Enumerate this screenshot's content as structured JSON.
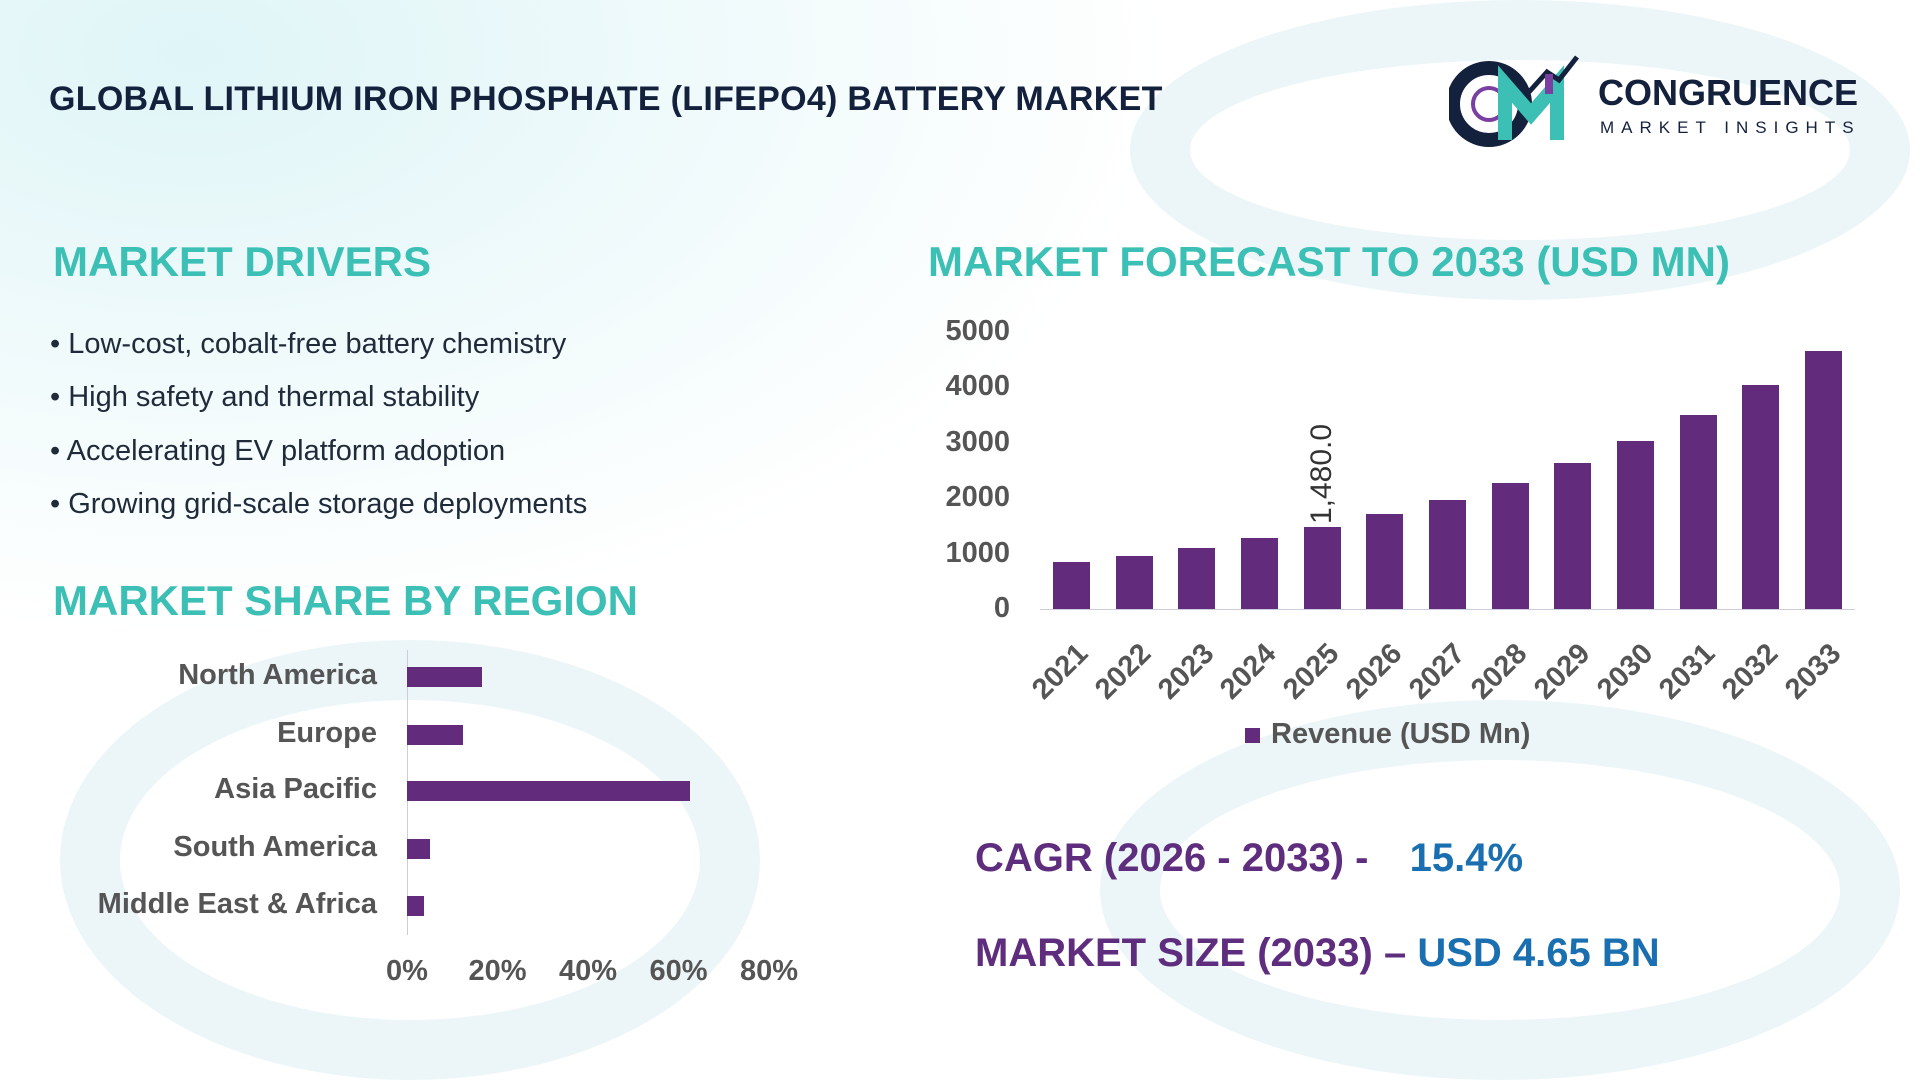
{
  "title": "GLOBAL LITHIUM IRON PHOSPHATE (LIFEPO4) BATTERY MARKET",
  "logo": {
    "name": "CONGRUENCE",
    "tagline": "MARKET INSIGHTS",
    "mark": "CM"
  },
  "drivers": {
    "heading": "MARKET DRIVERS",
    "items": [
      "• Low-cost, cobalt-free battery chemistry",
      "• High safety and thermal stability",
      "• Accelerating EV platform adoption",
      "• Growing grid-scale storage deployments"
    ]
  },
  "colors": {
    "accent": "#3cbfb4",
    "bar": "#632b7b",
    "kpi_label": "#5f2d7e",
    "kpi_value": "#1a6fb0"
  },
  "chart_data": [
    {
      "type": "bar",
      "orientation": "horizontal",
      "title": "MARKET SHARE BY REGION",
      "categories": [
        "North America",
        "Europe",
        "Asia Pacific",
        "South America",
        "Middle East & Africa"
      ],
      "values": [
        16.5,
        12.3,
        62.5,
        5.0,
        3.8
      ],
      "xlim": [
        0,
        80
      ],
      "xticks": [
        "0%",
        "20%",
        "40%",
        "60%",
        "80%"
      ],
      "grid": false
    },
    {
      "type": "bar",
      "title": "MARKET FORECAST TO 2033 (USD MN)",
      "categories": [
        "2021",
        "2022",
        "2023",
        "2024",
        "2025",
        "2026",
        "2027",
        "2028",
        "2029",
        "2030",
        "2031",
        "2032",
        "2033"
      ],
      "series": [
        {
          "name": "Revenue (USD Mn)",
          "values": [
            840,
            960,
            1105,
            1280,
            1480,
            1710,
            1970,
            2280,
            2630,
            3030,
            3500,
            4040,
            4650
          ]
        }
      ],
      "ylim": [
        0,
        5000
      ],
      "yticks": [
        "0",
        "1000",
        "2000",
        "3000",
        "4000",
        "5000"
      ],
      "annotations": [
        {
          "category": "2025",
          "label": "1,480.0"
        }
      ],
      "legend": "bottom",
      "grid": false
    }
  ],
  "kpis": {
    "cagr_label": "CAGR (2026 - 2033) -",
    "cagr_value": "15.4%",
    "size_label": "MARKET SIZE (2033) –",
    "size_value": "USD 4.65 BN"
  }
}
